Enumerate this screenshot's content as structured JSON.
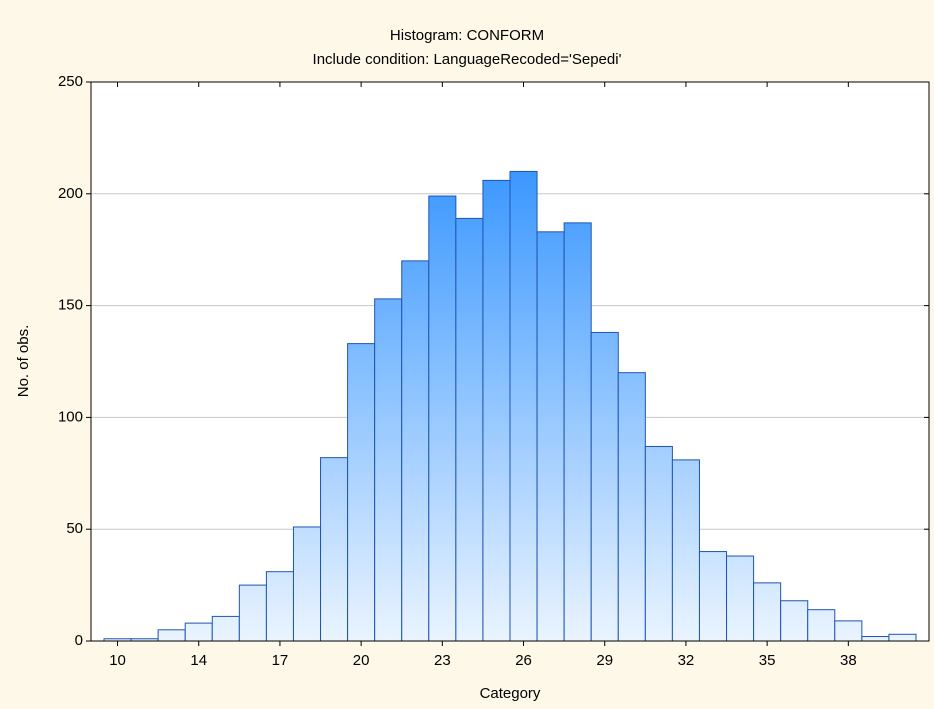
{
  "chart_data": {
    "type": "bar",
    "title": "Histogram: CONFORM",
    "subtitle": "Include condition: LanguageRecoded='Sepedi'",
    "x_label": "Category",
    "y_label": "No. of obs.",
    "categories": [
      "10",
      null,
      null,
      "14",
      null,
      null,
      "17",
      null,
      null,
      "20",
      null,
      null,
      "23",
      null,
      null,
      "26",
      null,
      null,
      "29",
      null,
      null,
      "32",
      null,
      null,
      "35",
      null,
      null,
      "38",
      null,
      null
    ],
    "values": [
      1,
      1,
      5,
      8,
      11,
      25,
      31,
      51,
      82,
      133,
      153,
      170,
      199,
      189,
      206,
      210,
      183,
      187,
      138,
      120,
      87,
      81,
      40,
      38,
      26,
      18,
      14,
      9,
      2,
      3
    ],
    "color": "#1a86ff",
    "ylim": [
      0,
      250
    ],
    "yticks": [
      0,
      50,
      100,
      150,
      200,
      250
    ],
    "grid": true
  }
}
